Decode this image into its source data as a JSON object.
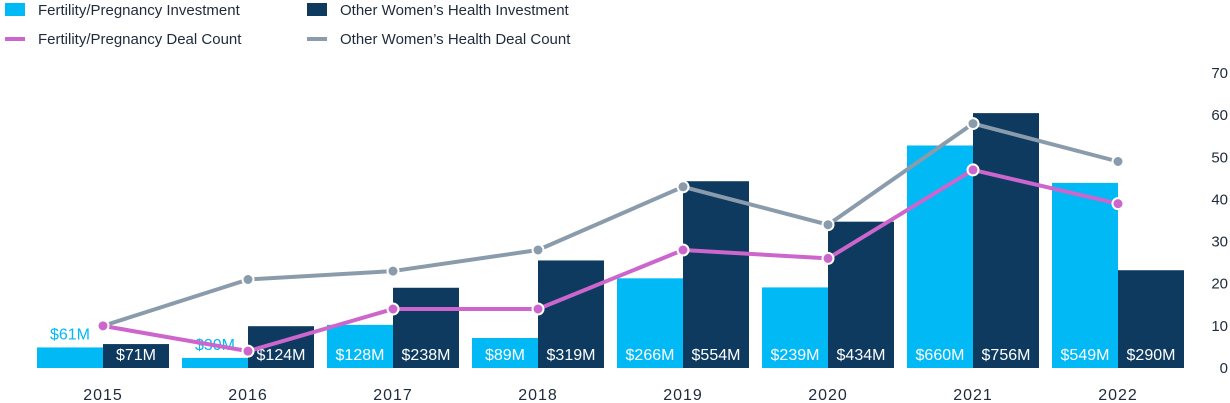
{
  "chart_data": {
    "type": "bar",
    "categories": [
      "2015",
      "2016",
      "2017",
      "2018",
      "2019",
      "2020",
      "2021",
      "2022"
    ],
    "series": [
      {
        "name": "Fertility/Pregnancy Investment",
        "kind": "bar",
        "values": [
          61,
          30,
          128,
          89,
          266,
          239,
          660,
          549
        ],
        "labels": [
          "$61M",
          "$30M",
          "$128M",
          "$89M",
          "$266M",
          "$239M",
          "$660M",
          "$549M"
        ],
        "color": "#00b9f5"
      },
      {
        "name": "Other Women’s Health Investment",
        "kind": "bar",
        "values": [
          71,
          124,
          238,
          319,
          554,
          434,
          756,
          290
        ],
        "labels": [
          "$71M",
          "$124M",
          "$238M",
          "$319M",
          "$554M",
          "$434M",
          "$756M",
          "$290M"
        ],
        "color": "#0e3a60"
      },
      {
        "name": "Fertility/Pregnancy Deal Count",
        "kind": "line",
        "values": [
          10,
          4,
          14,
          14,
          28,
          26,
          47,
          39
        ],
        "color": "#cc66cc"
      },
      {
        "name": "Other Women’s Health Deal Count",
        "kind": "line",
        "values": [
          10,
          21,
          23,
          28,
          43,
          34,
          58,
          49
        ],
        "color": "#8a9bac"
      }
    ],
    "y_right": {
      "ticks": [
        "0",
        "10",
        "20",
        "30",
        "40",
        "50",
        "60",
        "70"
      ],
      "ylim": [
        0,
        70
      ]
    },
    "investment_ylim": [
      0,
      875
    ],
    "legend_placement": "top-left",
    "grid": false
  }
}
